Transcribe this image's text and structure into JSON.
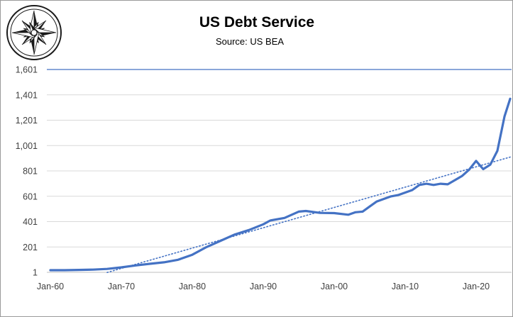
{
  "chart_data": {
    "type": "line",
    "title": "US Debt Service",
    "subtitle": "Source: US BEA",
    "xlabel": "",
    "ylabel": "",
    "y_ticks": [
      "1",
      "201",
      "401",
      "601",
      "801",
      "1,001",
      "1,201",
      "1,401",
      "1,601"
    ],
    "x_ticks": [
      "Jan-60",
      "Jan-70",
      "Jan-80",
      "Jan-90",
      "Jan-00",
      "Jan-10",
      "Jan-20"
    ],
    "x_tick_years": [
      1960,
      1970,
      1980,
      1990,
      2000,
      2010,
      2020
    ],
    "xlim": [
      1959.5,
      2025
    ],
    "ylim": [
      1,
      1601
    ],
    "grid": "horizontal",
    "legend": "none",
    "line_color": "#4472C4",
    "series": [
      {
        "style": "solid",
        "x": [
          1960,
          1962,
          1964,
          1966,
          1968,
          1970,
          1972,
          1974,
          1976,
          1978,
          1980,
          1982,
          1984,
          1986,
          1988,
          1990,
          1991,
          1993,
          1995,
          1996,
          1998,
          2000,
          2002,
          2003,
          2004,
          2005,
          2006,
          2008,
          2009,
          2011,
          2012,
          2013,
          2014,
          2015,
          2016,
          2018,
          2019,
          2020,
          2021,
          2022,
          2023,
          2024,
          2024.8
        ],
        "y": [
          18,
          18,
          20,
          22,
          28,
          40,
          55,
          68,
          80,
          100,
          140,
          200,
          250,
          300,
          335,
          380,
          410,
          430,
          480,
          485,
          470,
          468,
          455,
          475,
          480,
          520,
          560,
          600,
          610,
          650,
          690,
          700,
          690,
          700,
          695,
          760,
          810,
          880,
          815,
          850,
          960,
          1230,
          1370
        ]
      },
      {
        "style": "dotted",
        "name": "",
        "x": [
          1968,
          2024.8
        ],
        "y": [
          0,
          910
        ]
      }
    ]
  },
  "logo": {
    "name": "compass-rose-logo"
  }
}
